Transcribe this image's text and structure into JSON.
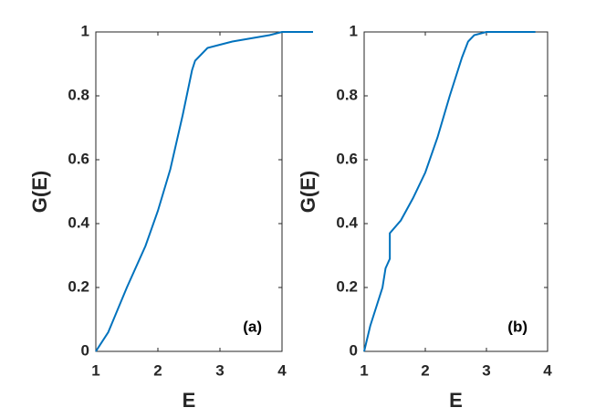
{
  "chart_data": [
    {
      "type": "line",
      "annotation": "(a)",
      "x_label": "E",
      "y_label": "G(E)",
      "color": "#0072bd",
      "x": [
        1,
        1.2,
        1.5,
        1.8,
        2.0,
        2.2,
        2.4,
        2.55,
        2.6,
        2.8,
        3.0,
        3.2,
        3.5,
        3.8,
        4.0,
        4.5
      ],
      "values": [
        0,
        0.06,
        0.2,
        0.33,
        0.44,
        0.57,
        0.74,
        0.88,
        0.91,
        0.95,
        0.96,
        0.97,
        0.98,
        0.99,
        1.0,
        1.0
      ],
      "xlim": [
        1,
        4
      ],
      "xticks": [
        1,
        2,
        3,
        4
      ],
      "ylim": [
        0,
        1
      ],
      "yticks": [
        0,
        0.2,
        0.4,
        0.6,
        0.8,
        1
      ]
    },
    {
      "type": "line",
      "annotation": "(b)",
      "x_label": "E",
      "y_label": "G(E)",
      "color": "#0072bd",
      "x": [
        1,
        1.1,
        1.3,
        1.35,
        1.42,
        1.42,
        1.6,
        1.8,
        2.0,
        2.2,
        2.4,
        2.6,
        2.7,
        2.8,
        3.0,
        3.8
      ],
      "values": [
        0,
        0.08,
        0.2,
        0.26,
        0.29,
        0.37,
        0.41,
        0.48,
        0.56,
        0.67,
        0.8,
        0.92,
        0.97,
        0.99,
        1.0,
        1.0
      ],
      "xlim": [
        1,
        4
      ],
      "xticks": [
        1,
        2,
        3,
        4
      ],
      "ylim": [
        0,
        1
      ],
      "yticks": [
        0,
        0.2,
        0.4,
        0.6,
        0.8,
        1
      ]
    }
  ]
}
